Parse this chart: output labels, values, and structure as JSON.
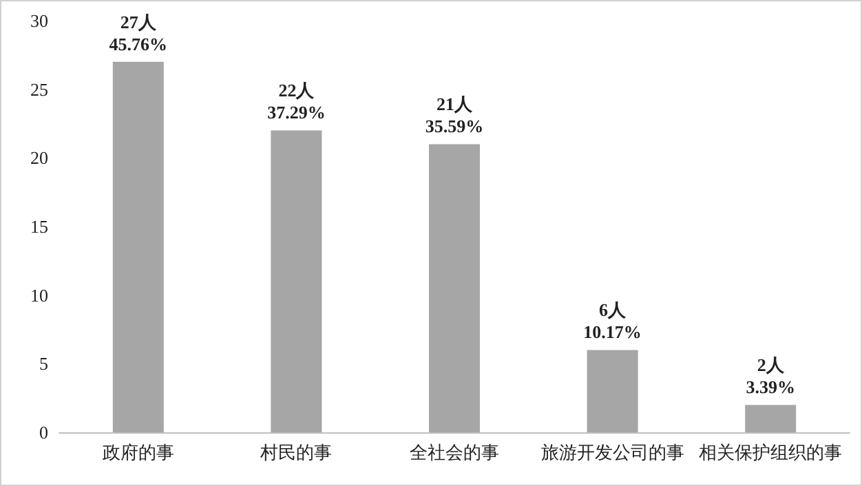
{
  "chart_data": {
    "type": "bar",
    "categories": [
      "政府的事",
      "村民的事",
      "全社会的事",
      "旅游开发公司的事",
      "相关保护组织的事"
    ],
    "values": [
      27,
      22,
      21,
      6,
      2
    ],
    "value_labels": [
      "27人\n45.76%",
      "22人\n37.29%",
      "21人\n35.59%",
      "6人\n10.17%",
      "2人\n3.39%"
    ],
    "color": "#a6a6a6",
    "ylim": [
      0,
      30
    ],
    "yticks": [
      0,
      5,
      10,
      15,
      20,
      25,
      30
    ],
    "grid": false
  }
}
